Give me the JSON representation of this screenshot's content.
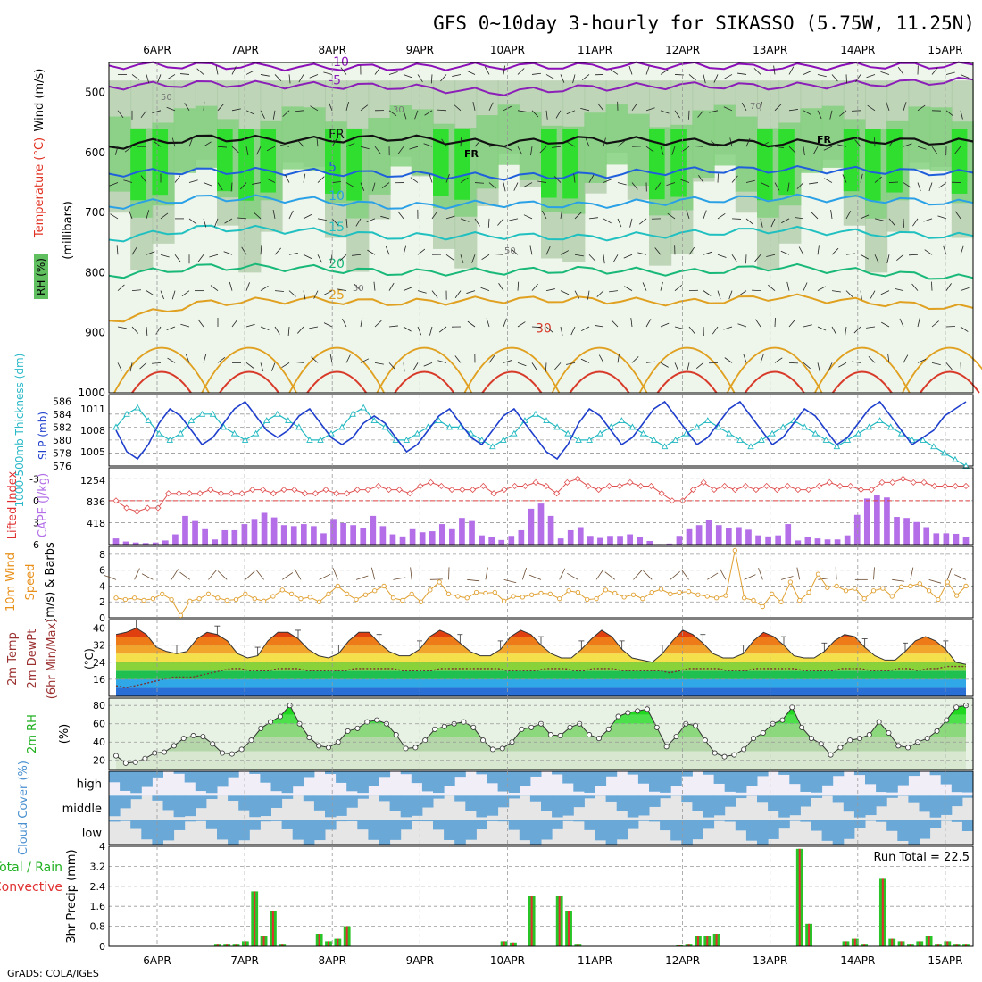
{
  "title": "GFS 0~10day 3-hourly for SIKASSO (5.75W, 11.25N)",
  "footer": "GrADS: COLA/IGES",
  "days": [
    "6APR",
    "7APR",
    "8APR",
    "9APR",
    "10APR",
    "11APR",
    "12APR",
    "13APR",
    "14APR",
    "15APR"
  ],
  "chart_data": [
    {
      "type": "contour",
      "panel": "upper-air",
      "ylabels": [
        "Wind (m/s)",
        "Temperature (°C)",
        "RH (%)",
        "(millibars)"
      ],
      "y_ticks": [
        500,
        600,
        700,
        800,
        900,
        1000
      ],
      "ylim": [
        450,
        1000
      ],
      "rh_levels": [
        "50",
        "70",
        "90"
      ],
      "isotherms": [
        {
          "label": "-10",
          "color": "#8b10b8",
          "values": [
            455,
            455,
            458,
            458,
            456,
            456,
            455,
            458,
            455,
            455
          ]
        },
        {
          "label": "-5",
          "color": "#8b1fb8",
          "values": [
            490,
            485,
            488,
            490,
            500,
            492,
            488,
            490,
            485,
            480
          ]
        },
        {
          "label": "FR",
          "color": "#111111",
          "values": [
            590,
            575,
            580,
            575,
            585,
            578,
            582,
            585,
            580,
            583
          ]
        },
        {
          "label": "5",
          "color": "#1f5fdc",
          "values": [
            635,
            630,
            632,
            636,
            640,
            638,
            630,
            628,
            630,
            635
          ]
        },
        {
          "label": "10",
          "color": "#2aa0e6",
          "values": [
            690,
            675,
            678,
            690,
            685,
            688,
            680,
            675,
            678,
            685
          ]
        },
        {
          "label": "15",
          "color": "#20c0c0",
          "values": [
            745,
            725,
            730,
            740,
            738,
            742,
            735,
            728,
            735,
            740
          ]
        },
        {
          "label": "20",
          "color": "#18b878",
          "values": [
            805,
            790,
            792,
            800,
            798,
            795,
            800,
            790,
            800,
            810
          ]
        },
        {
          "label": "25",
          "color": "#e0a020",
          "values": [
            880,
            850,
            845,
            850,
            845,
            845,
            850,
            840,
            850,
            860
          ]
        }
      ],
      "surface_isotherm": {
        "label": "30",
        "color": "#d83a2a"
      },
      "fr_labels": [
        "FR",
        "FR"
      ],
      "contour_labels": [
        "50",
        "30",
        "70",
        "50",
        "50"
      ]
    },
    {
      "type": "line",
      "panel": "thickness-slp",
      "ylabel_left": "1000-500mb Thickness (dm)",
      "ylabel_right": "SLP (mb)",
      "left_ticks": [
        "586",
        "584",
        "582",
        "580",
        "578",
        "576"
      ],
      "right_ticks": [
        "1011",
        "1008",
        "1005"
      ],
      "series": [
        {
          "name": "1000-500mb Thickness (dm)",
          "color": "#20b8c0",
          "marker": "triangle",
          "values": [
            582,
            584,
            585,
            583,
            581,
            580,
            581,
            583,
            584,
            584,
            582,
            581,
            580,
            581,
            583,
            584,
            583,
            582,
            580,
            580,
            581,
            582,
            584,
            585,
            583,
            582,
            580,
            580,
            581,
            582,
            583,
            582,
            582,
            581,
            580,
            579,
            580,
            581,
            583,
            584,
            583,
            582,
            581,
            580,
            580,
            581,
            582,
            583,
            582,
            581,
            580,
            579,
            580,
            581,
            582,
            583,
            582,
            581,
            580,
            579,
            580,
            581,
            582,
            583,
            582,
            581,
            580,
            579,
            580,
            581,
            582,
            583,
            582,
            581,
            580,
            580,
            579,
            578,
            577,
            576
          ]
        },
        {
          "name": "SLP (mb)",
          "color": "#1f3fcc",
          "marker": "none",
          "values": [
            1008,
            1005,
            1004,
            1006,
            1009,
            1011,
            1010,
            1008,
            1006,
            1007,
            1009,
            1011,
            1012,
            1010,
            1008,
            1007,
            1008,
            1010,
            1011,
            1009,
            1007,
            1006,
            1007,
            1009,
            1010,
            1009,
            1007,
            1005,
            1006,
            1008,
            1010,
            1011,
            1009,
            1007,
            1006,
            1008,
            1010,
            1011,
            1009,
            1007,
            1005,
            1004,
            1006,
            1009,
            1011,
            1010,
            1008,
            1006,
            1007,
            1009,
            1011,
            1012,
            1010,
            1008,
            1006,
            1007,
            1009,
            1011,
            1012,
            1010,
            1008,
            1006,
            1007,
            1009,
            1011,
            1010,
            1008,
            1006,
            1007,
            1009,
            1011,
            1012,
            1010,
            1008,
            1006,
            1007,
            1008,
            1010,
            1011,
            1012
          ]
        }
      ]
    },
    {
      "type": "bar+line",
      "panel": "cape-li",
      "ylabel_left": "Lifted Index",
      "ylabel_right": "CAPE (J/kg)",
      "li_ticks": [
        "-3",
        "0",
        "3",
        "6"
      ],
      "cape_ticks": [
        "1254",
        "836",
        "418"
      ],
      "cape": [
        120,
        60,
        40,
        30,
        40,
        80,
        200,
        560,
        460,
        300,
        100,
        280,
        280,
        400,
        500,
        620,
        530,
        380,
        360,
        400,
        360,
        220,
        500,
        420,
        380,
        320,
        560,
        360,
        200,
        160,
        300,
        240,
        260,
        400,
        300,
        520,
        460,
        180,
        140,
        90,
        170,
        280,
        700,
        800,
        560,
        120,
        280,
        340,
        170,
        130,
        170,
        170,
        200,
        150,
        70,
        10,
        20,
        170,
        300,
        380,
        480,
        380,
        330,
        340,
        290,
        180,
        160,
        180,
        400,
        80,
        140,
        120,
        100,
        100,
        180,
        580,
        900,
        960,
        920,
        540,
        520,
        440,
        340,
        220,
        220,
        210,
        150
      ],
      "lifted_index": [
        0,
        1,
        1.5,
        1,
        1,
        -1,
        -1,
        -1,
        -1,
        -1.5,
        -1,
        -1,
        -1,
        -1.5,
        -1.5,
        -1,
        -1.5,
        -1.5,
        -1,
        -1,
        -1.5,
        -1,
        -1,
        -1.5,
        -1.5,
        -2,
        -1.5,
        -1.5,
        -1,
        -2,
        -2.5,
        -2,
        -1.5,
        -1.5,
        -1.5,
        -2,
        -1,
        -1.5,
        -2,
        -2,
        -2.5,
        -2,
        -1,
        -2.5,
        -3,
        -2,
        -1.5,
        -2,
        -2,
        -2.5,
        -2,
        -2,
        -1,
        0,
        0,
        -1.5,
        -2.5,
        -1.5,
        -2,
        -1.5,
        -2,
        -1.5,
        -2,
        -1.5,
        -2,
        -1.5,
        -1.5,
        -2,
        -2.5,
        -2,
        -2,
        -1.5,
        -1.5,
        -2.5,
        -2.5,
        -3,
        -2.5,
        -2.5,
        -2,
        -2,
        -2,
        -2
      ]
    },
    {
      "type": "line",
      "panel": "wind-10m",
      "ylabel": [
        "10m Wind",
        "Speed",
        "(m/s)",
        "& Barbs"
      ],
      "y_ticks": [
        "8",
        "6",
        "4",
        "2",
        "0"
      ],
      "ylim": [
        0,
        9
      ],
      "values": [
        2.5,
        2.3,
        2.5,
        2.2,
        2.4,
        3,
        2.3,
        0.3,
        2.1,
        2.4,
        3,
        2.5,
        2.2,
        2.3,
        3,
        2.4,
        2.1,
        2.7,
        3.5,
        3,
        2.4,
        2.6,
        2,
        3,
        4,
        3,
        2.3,
        2.9,
        3.4,
        4,
        2.5,
        2.2,
        3,
        2,
        3.5,
        4.5,
        3,
        2.7,
        2.5,
        3.2,
        3.1,
        3.2,
        2.1,
        2.7,
        2.6,
        2.9,
        3.1,
        3,
        2.4,
        3.4,
        3.2,
        2.3,
        2.4,
        3.5,
        3.1,
        2.6,
        2.9,
        2.4,
        3.2,
        3.6,
        3,
        3.2,
        3.3,
        2.9,
        2.7,
        2.5,
        2.8,
        8.5,
        2.5,
        2.2,
        1.4,
        3,
        2,
        4.5,
        2.2,
        3.2,
        5.5,
        3.8,
        4,
        3.4,
        3.7,
        2.4,
        3.4,
        3.7,
        2.7,
        3.9,
        4,
        4.3,
        3.4,
        2.3,
        4.5,
        2.8,
        4
      ]
    },
    {
      "type": "area",
      "panel": "temperature",
      "ylabel": [
        "2m Temp",
        "2m DewPt",
        "(6hr Min/Max)",
        "(°C)"
      ],
      "y_ticks": [
        "40",
        "32",
        "24",
        "16"
      ],
      "ylim": [
        8,
        44
      ],
      "temperature": [
        37,
        38,
        40,
        37,
        31,
        29,
        28,
        29,
        35,
        38,
        37,
        34,
        28,
        26,
        27,
        34,
        38,
        38,
        35,
        30,
        27,
        26,
        28,
        34,
        38,
        38,
        33,
        29,
        27,
        27,
        30,
        36,
        39,
        37,
        33,
        29,
        27,
        27,
        30,
        36,
        39,
        37,
        32,
        28,
        26,
        26,
        30,
        35,
        39,
        36,
        30,
        26,
        25,
        24,
        28,
        34,
        39,
        37,
        33,
        28,
        26,
        26,
        28,
        34,
        38,
        36,
        32,
        27,
        26,
        26,
        29,
        34,
        37,
        36,
        31,
        27,
        25,
        25,
        29,
        34,
        36,
        34,
        30,
        24,
        23
      ],
      "dewpoint": [
        13,
        12,
        13,
        14,
        15,
        16,
        17,
        17,
        17,
        18,
        19,
        20,
        21,
        21,
        20,
        20,
        20,
        21,
        21,
        21,
        20,
        20,
        20,
        20,
        20,
        21,
        21,
        21,
        21,
        21,
        20,
        20,
        20,
        20,
        21,
        21,
        21,
        21,
        21,
        21,
        21,
        20,
        20,
        20,
        20,
        21,
        21,
        21,
        20,
        20,
        21,
        21,
        21,
        20,
        20,
        20,
        20,
        20,
        19,
        20,
        21,
        21,
        21,
        21,
        20,
        20,
        20,
        21,
        21,
        21,
        21,
        21,
        20,
        20,
        20,
        20,
        21,
        21,
        21,
        20,
        20,
        20,
        21,
        21,
        20,
        21,
        21,
        22,
        22,
        22
      ]
    },
    {
      "type": "area",
      "panel": "rh-2m",
      "ylabel": [
        "2m RH",
        "(%)"
      ],
      "y_ticks": [
        "80",
        "60",
        "40",
        "20"
      ],
      "ylim": [
        10,
        88
      ],
      "values": [
        25,
        17,
        18,
        22,
        28,
        29,
        36,
        44,
        47,
        46,
        38,
        28,
        27,
        32,
        42,
        55,
        62,
        68,
        80,
        60,
        45,
        36,
        34,
        40,
        52,
        55,
        62,
        64,
        60,
        48,
        33,
        34,
        42,
        54,
        57,
        60,
        62,
        56,
        42,
        32,
        33,
        40,
        54,
        56,
        60,
        48,
        47,
        56,
        60,
        48,
        44,
        54,
        68,
        72,
        74,
        76,
        56,
        35,
        46,
        60,
        58,
        42,
        28,
        24,
        26,
        32,
        44,
        50,
        60,
        64,
        78,
        56,
        44,
        38,
        26,
        34,
        42,
        44,
        48,
        62,
        50,
        36,
        34,
        40,
        44,
        52,
        64,
        78,
        80
      ]
    },
    {
      "type": "heatmap",
      "panel": "cloud-cover",
      "ylabel": "Cloud Cover (%)",
      "rows": [
        "high",
        "middle",
        "low"
      ]
    },
    {
      "type": "bar",
      "panel": "precip",
      "ylabel": "3hr Precip (mm)",
      "legend": [
        "Total / Rain",
        "Convective"
      ],
      "annotation": "Run Total = 22.5",
      "y_ticks": [
        "4",
        "3.2",
        "2.4",
        "1.6",
        "0.8",
        "0"
      ],
      "ylim": [
        0,
        4
      ],
      "total": [
        0,
        0,
        0,
        0,
        0,
        0,
        0,
        0,
        0,
        0,
        0,
        0.1,
        0.1,
        0.1,
        0.2,
        2.2,
        0.4,
        1.4,
        0.1,
        0,
        0,
        0,
        0.5,
        0.2,
        0.3,
        0.8,
        0,
        0,
        0,
        0,
        0,
        0,
        0,
        0,
        0,
        0,
        0,
        0,
        0,
        0,
        0,
        0,
        0.2,
        0.15,
        0,
        2,
        0,
        0,
        2,
        1.4,
        0.1,
        0,
        0,
        0,
        0,
        0,
        0,
        0,
        0,
        0,
        0,
        0.05,
        0.1,
        0.4,
        0.4,
        0.5,
        0,
        0,
        0,
        0,
        0,
        0,
        0,
        0,
        3.9,
        0.9,
        0,
        0,
        0,
        0.2,
        0.3,
        0.1,
        0,
        2.7,
        0.3,
        0.2,
        0.1,
        0.2,
        0.4,
        0.1,
        0.2,
        0.1,
        0.1
      ]
    }
  ]
}
